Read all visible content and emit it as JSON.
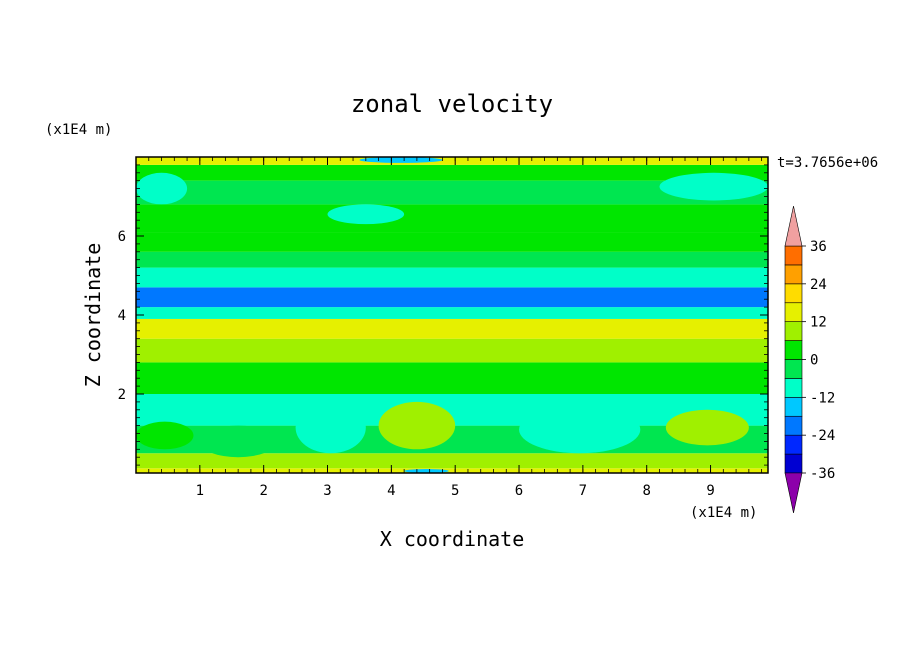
{
  "chart_data": {
    "type": "heatmap",
    "title": "zonal velocity",
    "xlabel": "X coordinate",
    "ylabel": "Z coordinate",
    "x_scale_label": "(x1E4 m)",
    "y_scale_label": "(x1E4 m)",
    "time_label": "t=3.7656e+06",
    "xlim": [
      0,
      9.9
    ],
    "ylim": [
      0,
      8
    ],
    "x_ticks": [
      "1",
      "2",
      "3",
      "4",
      "5",
      "6",
      "7",
      "8",
      "9"
    ],
    "x_tick_values": [
      1,
      2,
      3,
      4,
      5,
      6,
      7,
      8,
      9
    ],
    "y_ticks": [
      "2",
      "4",
      "6"
    ],
    "y_tick_values": [
      2,
      4,
      6
    ],
    "colorbar": {
      "labels": [
        "36",
        "24",
        "12",
        "0",
        "-12",
        "-24",
        "-36"
      ],
      "label_values": [
        36,
        24,
        12,
        0,
        -12,
        -24,
        -36
      ],
      "levels": [
        -42,
        -36,
        -30,
        -24,
        -18,
        -12,
        -6,
        0,
        6,
        12,
        18,
        24,
        30,
        36,
        42
      ],
      "colors": [
        "#6a0096",
        "#3a00b4",
        "#0000d2",
        "#0028ff",
        "#0078ff",
        "#00c8ff",
        "#00ffc8",
        "#00e650",
        "#00e600",
        "#a0f000",
        "#e6f000",
        "#ffdc00",
        "#ffa000",
        "#ff6e00",
        "#ff2800",
        "#f0a0a0"
      ],
      "over_color": "#f0a0a0",
      "under_color": "#8c00aa"
    },
    "bands": [
      {
        "z": [
          0.0,
          0.12
        ],
        "value": 14
      },
      {
        "z": [
          0.12,
          0.5
        ],
        "value": 6
      },
      {
        "z": [
          0.5,
          1.2
        ],
        "value": -6
      },
      {
        "z": [
          1.2,
          2.0
        ],
        "value": -8
      },
      {
        "z": [
          2.0,
          2.8
        ],
        "value": 4
      },
      {
        "z": [
          2.8,
          3.4
        ],
        "value": 9
      },
      {
        "z": [
          3.4,
          3.9
        ],
        "value": 14
      },
      {
        "z": [
          3.9,
          4.2
        ],
        "value": -12
      },
      {
        "z": [
          4.2,
          4.7
        ],
        "value": -20
      },
      {
        "z": [
          4.7,
          5.2
        ],
        "value": -9
      },
      {
        "z": [
          5.2,
          5.6
        ],
        "value": -3
      },
      {
        "z": [
          5.6,
          6.1
        ],
        "value": 2
      },
      {
        "z": [
          6.1,
          6.8
        ],
        "value": 5
      },
      {
        "z": [
          6.8,
          7.4
        ],
        "value": -4
      },
      {
        "z": [
          7.4,
          7.8
        ],
        "value": 3
      },
      {
        "z": [
          7.8,
          8.0
        ],
        "value": 12
      }
    ],
    "features": [
      {
        "x": [
          2.5,
          3.6
        ],
        "z": [
          0.5,
          1.8
        ],
        "value": -12
      },
      {
        "x": [
          6.0,
          7.9
        ],
        "z": [
          0.5,
          1.7
        ],
        "value": -12
      },
      {
        "x": [
          3.8,
          5.0
        ],
        "z": [
          0.6,
          1.8
        ],
        "value": 10
      },
      {
        "x": [
          1.0,
          2.2
        ],
        "z": [
          0.4,
          1.2
        ],
        "value": -2
      },
      {
        "x": [
          8.3,
          9.6
        ],
        "z": [
          0.7,
          1.6
        ],
        "value": 9
      },
      {
        "x": [
          0.0,
          0.9
        ],
        "z": [
          0.6,
          1.3
        ],
        "value": 4
      },
      {
        "x": [
          3.0,
          4.2
        ],
        "z": [
          6.3,
          6.8
        ],
        "value": -9
      },
      {
        "x": [
          0.0,
          0.8
        ],
        "z": [
          6.8,
          7.6
        ],
        "value": -9
      },
      {
        "x": [
          8.2,
          9.9
        ],
        "z": [
          6.9,
          7.6
        ],
        "value": -8
      },
      {
        "x": [
          3.5,
          4.8
        ],
        "z": [
          7.85,
          8.0
        ],
        "value": -16
      },
      {
        "x": [
          4.2,
          4.9
        ],
        "z": [
          0.0,
          0.1
        ],
        "value": -18
      }
    ]
  }
}
